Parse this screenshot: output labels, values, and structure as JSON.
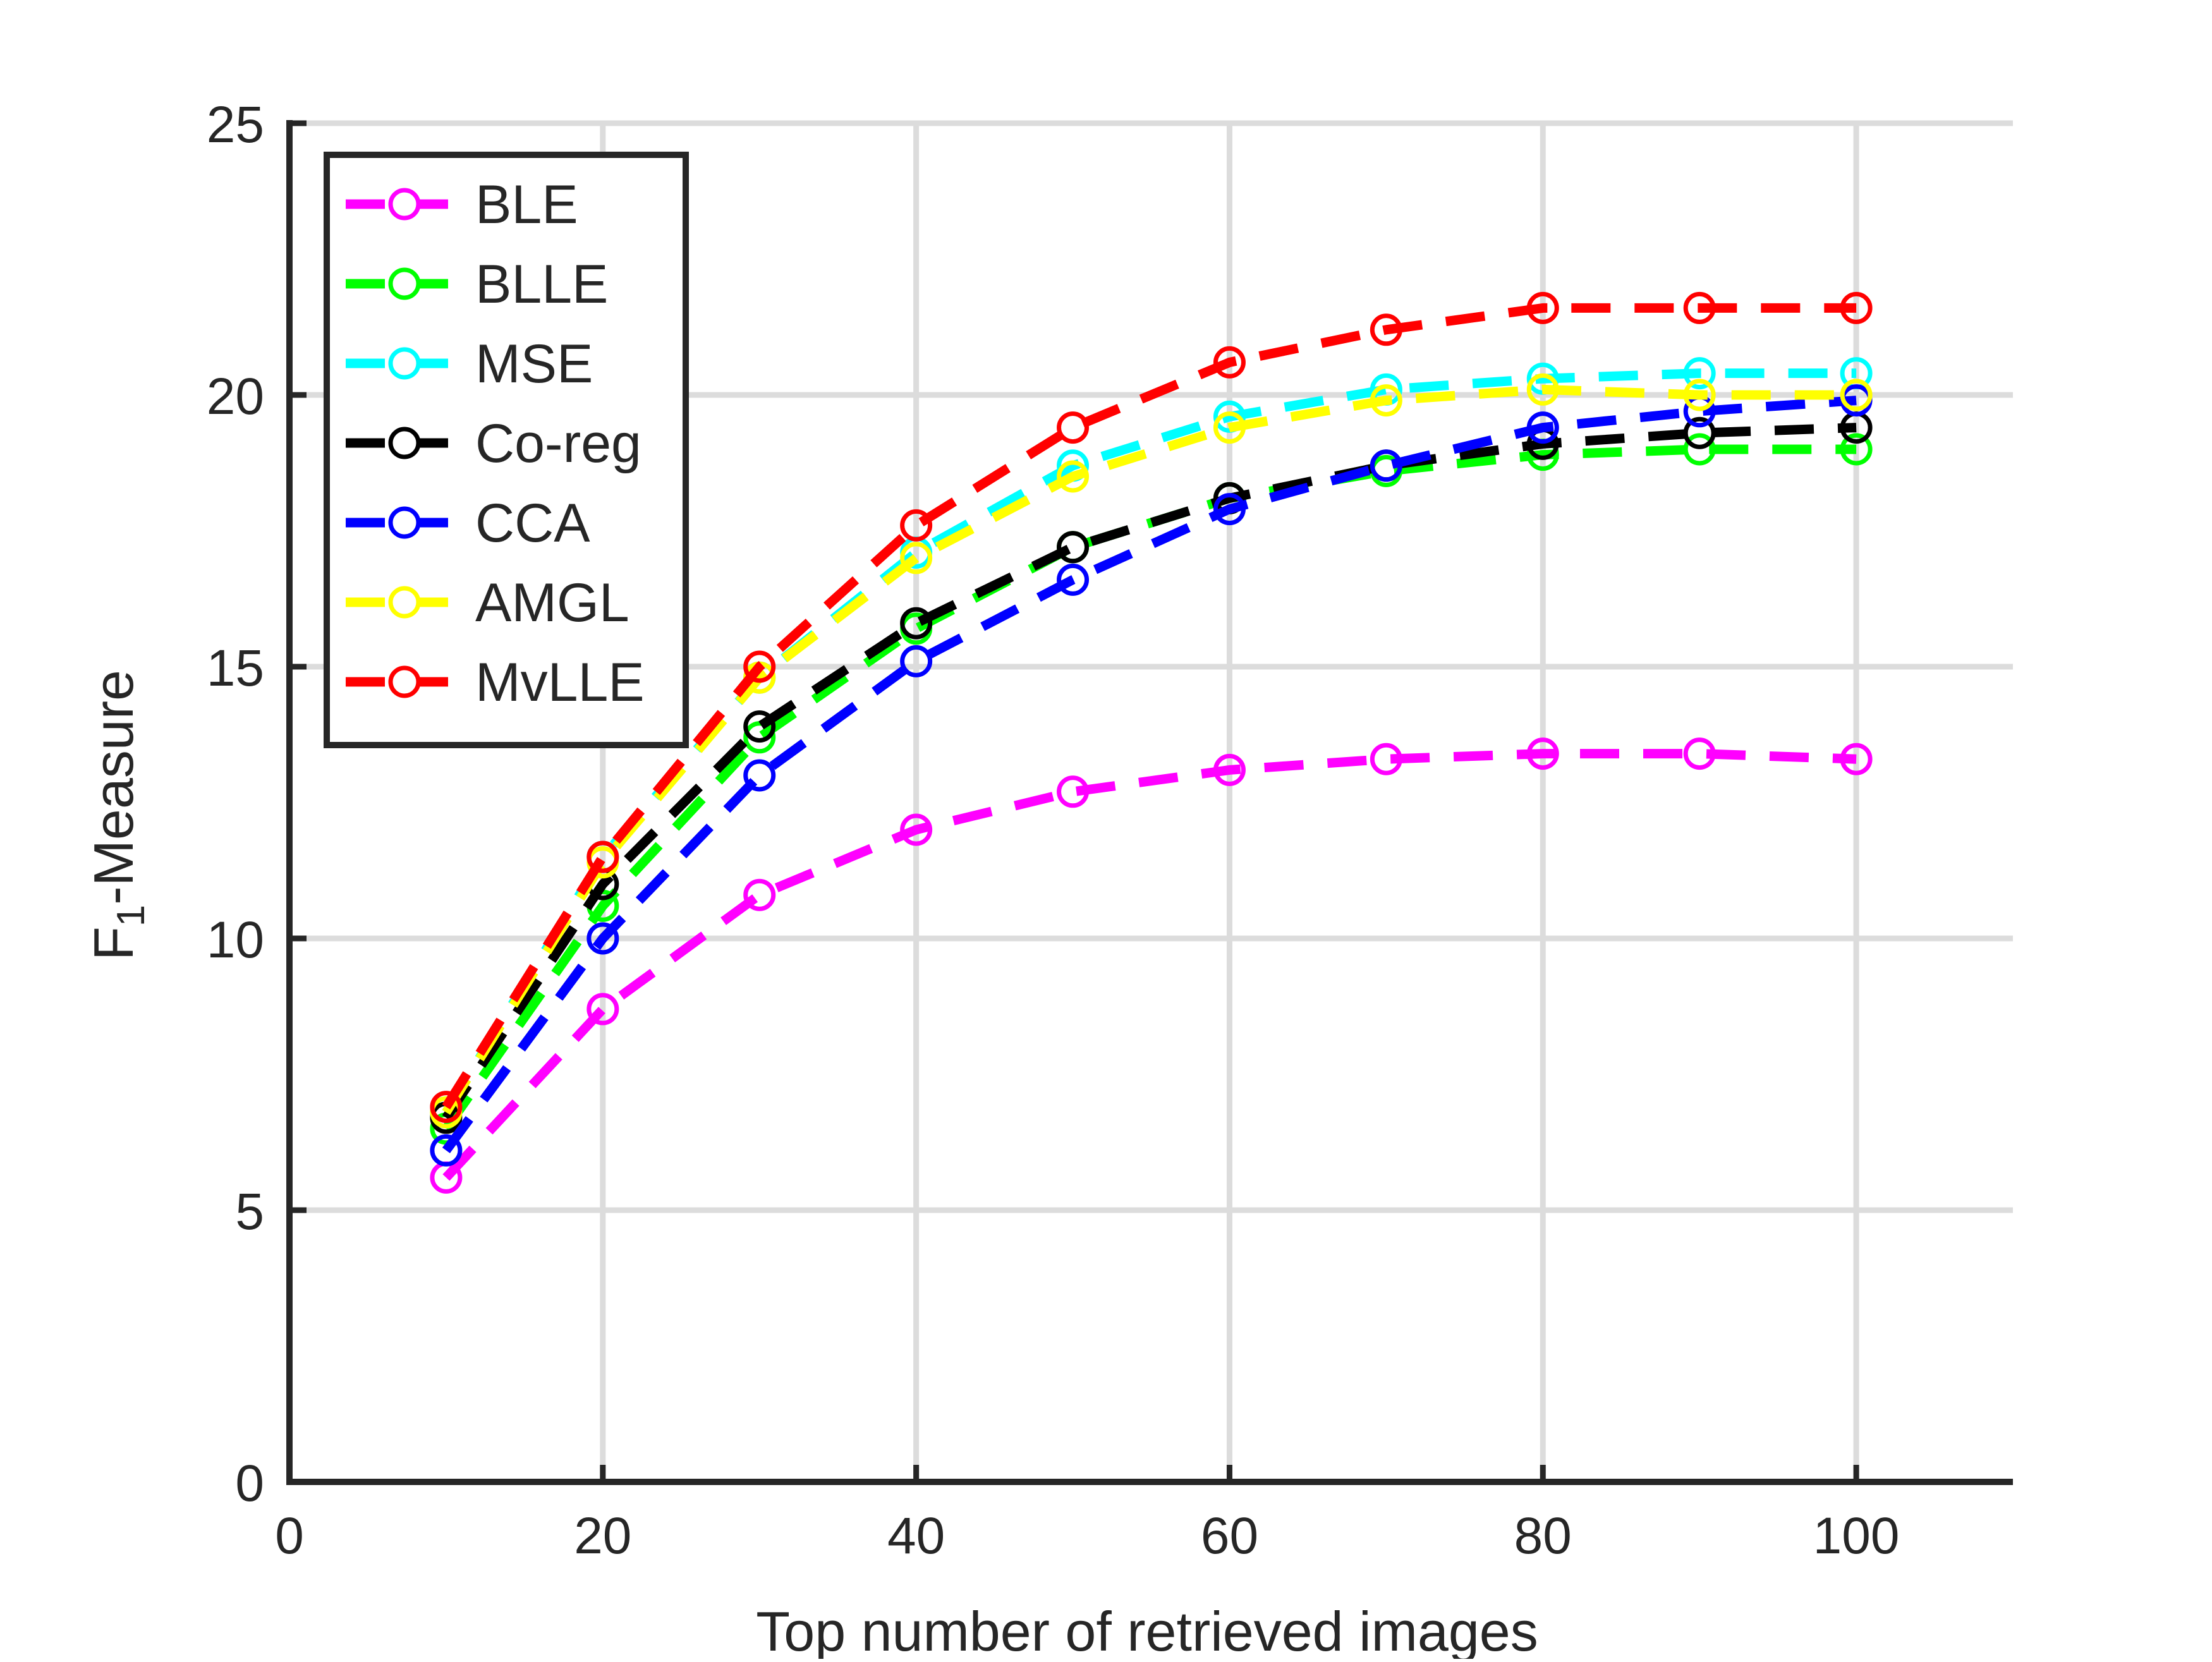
{
  "chart_data": {
    "type": "line",
    "title": "",
    "xlabel": "Top number of retrieved images",
    "ylabel_main": "F",
    "ylabel_sub": "1",
    "ylabel_rest": "-Measure",
    "xlim": [
      0,
      110
    ],
    "ylim": [
      0,
      25
    ],
    "xticks": [
      0,
      20,
      40,
      60,
      80,
      100
    ],
    "yticks": [
      0,
      5,
      10,
      15,
      20,
      25
    ],
    "grid": true,
    "legend_position": "top-left",
    "x": [
      10,
      20,
      30,
      40,
      50,
      60,
      70,
      80,
      90,
      100
    ],
    "series": [
      {
        "name": "BLE",
        "color": "#ff00ff",
        "values": [
          5.6,
          8.7,
          10.8,
          12.0,
          12.7,
          13.1,
          13.3,
          13.4,
          13.4,
          13.3
        ]
      },
      {
        "name": "BLLE",
        "color": "#00ff00",
        "values": [
          6.5,
          10.6,
          13.7,
          15.7,
          17.2,
          18.1,
          18.6,
          18.9,
          19.0,
          19.0
        ]
      },
      {
        "name": "MSE",
        "color": "#00ffff",
        "values": [
          6.8,
          11.5,
          14.8,
          17.1,
          18.7,
          19.6,
          20.1,
          20.3,
          20.4,
          20.4
        ]
      },
      {
        "name": "Co-reg",
        "color": "#000000",
        "values": [
          6.7,
          11.0,
          13.9,
          15.8,
          17.2,
          18.1,
          18.7,
          19.1,
          19.3,
          19.4
        ]
      },
      {
        "name": "CCA",
        "color": "#0000ff",
        "values": [
          6.1,
          10.0,
          13.0,
          15.1,
          16.6,
          17.9,
          18.7,
          19.4,
          19.7,
          19.9
        ]
      },
      {
        "name": "AMGL",
        "color": "#ffff00",
        "values": [
          6.8,
          11.4,
          14.8,
          17.0,
          18.5,
          19.4,
          19.9,
          20.1,
          20.0,
          20.0
        ]
      },
      {
        "name": "MvLLE",
        "color": "#ff0000",
        "values": [
          6.9,
          11.5,
          15.0,
          17.6,
          19.4,
          20.6,
          21.2,
          21.6,
          21.6,
          21.6
        ]
      }
    ]
  }
}
